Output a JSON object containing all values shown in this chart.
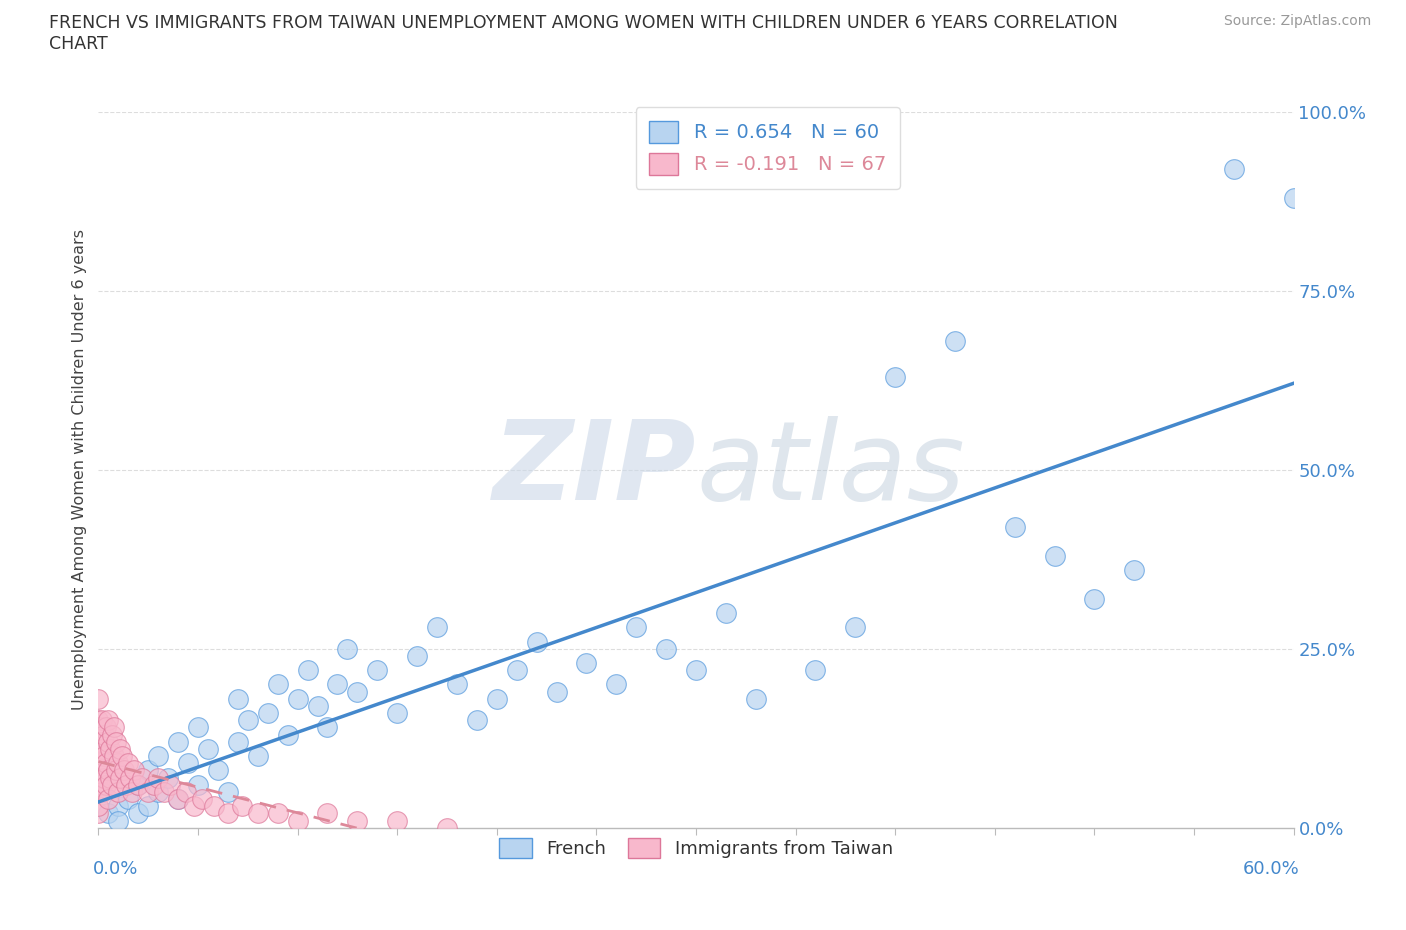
{
  "title_line1": "FRENCH VS IMMIGRANTS FROM TAIWAN UNEMPLOYMENT AMONG WOMEN WITH CHILDREN UNDER 6 YEARS CORRELATION",
  "title_line2": "CHART",
  "source": "Source: ZipAtlas.com",
  "ylabel": "Unemployment Among Women with Children Under 6 years",
  "R_french": 0.654,
  "N_french": 60,
  "R_taiwan": -0.191,
  "N_taiwan": 67,
  "legend_labels": [
    "French",
    "Immigrants from Taiwan"
  ],
  "blue_fill": "#b8d4f0",
  "blue_edge": "#5599dd",
  "pink_fill": "#f8b8cc",
  "pink_edge": "#dd7799",
  "blue_line": "#4488cc",
  "pink_line": "#dd8899",
  "axis_label_color": "#4488cc",
  "title_color": "#333333",
  "source_color": "#999999",
  "watermark_color": "#ccd8e8",
  "grid_color": "#dddddd",
  "background": "#ffffff",
  "xlim": [
    0,
    0.6
  ],
  "ylim": [
    0,
    1.0
  ],
  "french_x": [
    0.005,
    0.01,
    0.01,
    0.015,
    0.02,
    0.02,
    0.025,
    0.025,
    0.03,
    0.03,
    0.035,
    0.04,
    0.04,
    0.045,
    0.05,
    0.05,
    0.055,
    0.06,
    0.065,
    0.07,
    0.07,
    0.075,
    0.08,
    0.085,
    0.09,
    0.095,
    0.1,
    0.105,
    0.11,
    0.115,
    0.12,
    0.125,
    0.13,
    0.14,
    0.15,
    0.16,
    0.17,
    0.18,
    0.19,
    0.2,
    0.21,
    0.22,
    0.23,
    0.245,
    0.26,
    0.27,
    0.285,
    0.3,
    0.315,
    0.33,
    0.36,
    0.38,
    0.4,
    0.43,
    0.46,
    0.48,
    0.5,
    0.52,
    0.57,
    0.6
  ],
  "french_y": [
    0.02,
    0.03,
    0.01,
    0.04,
    0.02,
    0.06,
    0.03,
    0.08,
    0.05,
    0.1,
    0.07,
    0.04,
    0.12,
    0.09,
    0.06,
    0.14,
    0.11,
    0.08,
    0.05,
    0.12,
    0.18,
    0.15,
    0.1,
    0.16,
    0.2,
    0.13,
    0.18,
    0.22,
    0.17,
    0.14,
    0.2,
    0.25,
    0.19,
    0.22,
    0.16,
    0.24,
    0.28,
    0.2,
    0.15,
    0.18,
    0.22,
    0.26,
    0.19,
    0.23,
    0.2,
    0.28,
    0.25,
    0.22,
    0.3,
    0.18,
    0.22,
    0.28,
    0.63,
    0.68,
    0.42,
    0.38,
    0.32,
    0.36,
    0.92,
    0.88
  ],
  "taiwan_x": [
    0.0,
    0.0,
    0.0,
    0.0,
    0.0,
    0.0,
    0.0,
    0.0,
    0.0,
    0.001,
    0.001,
    0.001,
    0.001,
    0.002,
    0.002,
    0.002,
    0.002,
    0.003,
    0.003,
    0.003,
    0.004,
    0.004,
    0.004,
    0.005,
    0.005,
    0.005,
    0.005,
    0.006,
    0.006,
    0.007,
    0.007,
    0.008,
    0.008,
    0.009,
    0.009,
    0.01,
    0.01,
    0.011,
    0.011,
    0.012,
    0.013,
    0.014,
    0.015,
    0.016,
    0.017,
    0.018,
    0.02,
    0.022,
    0.025,
    0.028,
    0.03,
    0.033,
    0.036,
    0.04,
    0.044,
    0.048,
    0.052,
    0.058,
    0.065,
    0.072,
    0.08,
    0.09,
    0.1,
    0.115,
    0.13,
    0.15,
    0.175
  ],
  "taiwan_y": [
    0.02,
    0.05,
    0.08,
    0.12,
    0.15,
    0.18,
    0.1,
    0.07,
    0.03,
    0.14,
    0.09,
    0.06,
    0.12,
    0.08,
    0.15,
    0.11,
    0.05,
    0.13,
    0.07,
    0.1,
    0.09,
    0.14,
    0.06,
    0.12,
    0.08,
    0.15,
    0.04,
    0.11,
    0.07,
    0.13,
    0.06,
    0.1,
    0.14,
    0.08,
    0.12,
    0.09,
    0.05,
    0.11,
    0.07,
    0.1,
    0.08,
    0.06,
    0.09,
    0.07,
    0.05,
    0.08,
    0.06,
    0.07,
    0.05,
    0.06,
    0.07,
    0.05,
    0.06,
    0.04,
    0.05,
    0.03,
    0.04,
    0.03,
    0.02,
    0.03,
    0.02,
    0.02,
    0.01,
    0.02,
    0.01,
    0.01,
    0.0
  ]
}
